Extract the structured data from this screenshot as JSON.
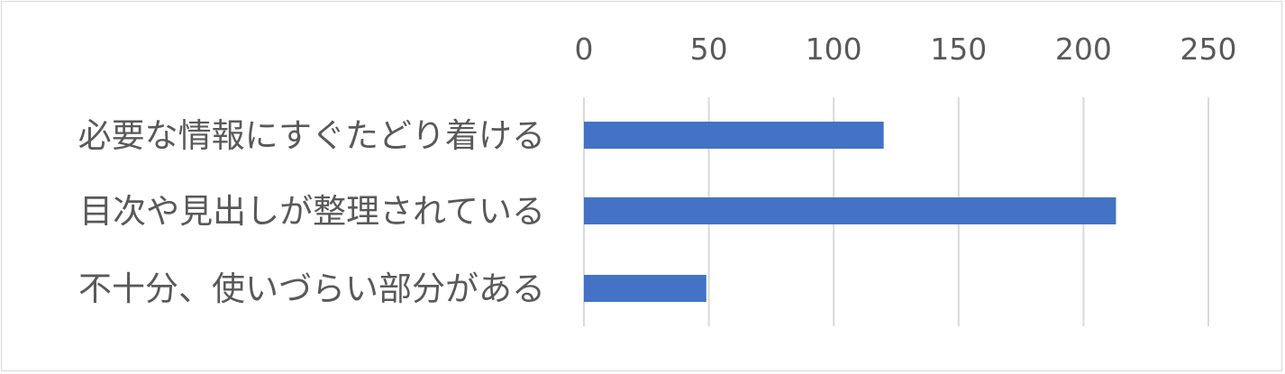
{
  "chart_data": {
    "type": "bar",
    "orientation": "horizontal",
    "categories": [
      "必要な情報にすぐたどり着ける",
      "目次や見出しが整理されている",
      "不十分、使いづらい部分がある"
    ],
    "values": [
      120,
      213,
      49
    ],
    "xlim": [
      0,
      250
    ],
    "xticks": [
      0,
      50,
      100,
      150,
      200,
      250
    ],
    "xtick_labels": [
      "0",
      "50",
      "100",
      "150",
      "200",
      "250"
    ],
    "x_axis_position": "top",
    "grid": "vertical",
    "legend": "none",
    "title": "",
    "xlabel": "",
    "ylabel": ""
  },
  "colors": {
    "bar": "#4472c4",
    "grid": "#d9d9d9",
    "text": "#595959",
    "border": "#d9d9d9"
  }
}
